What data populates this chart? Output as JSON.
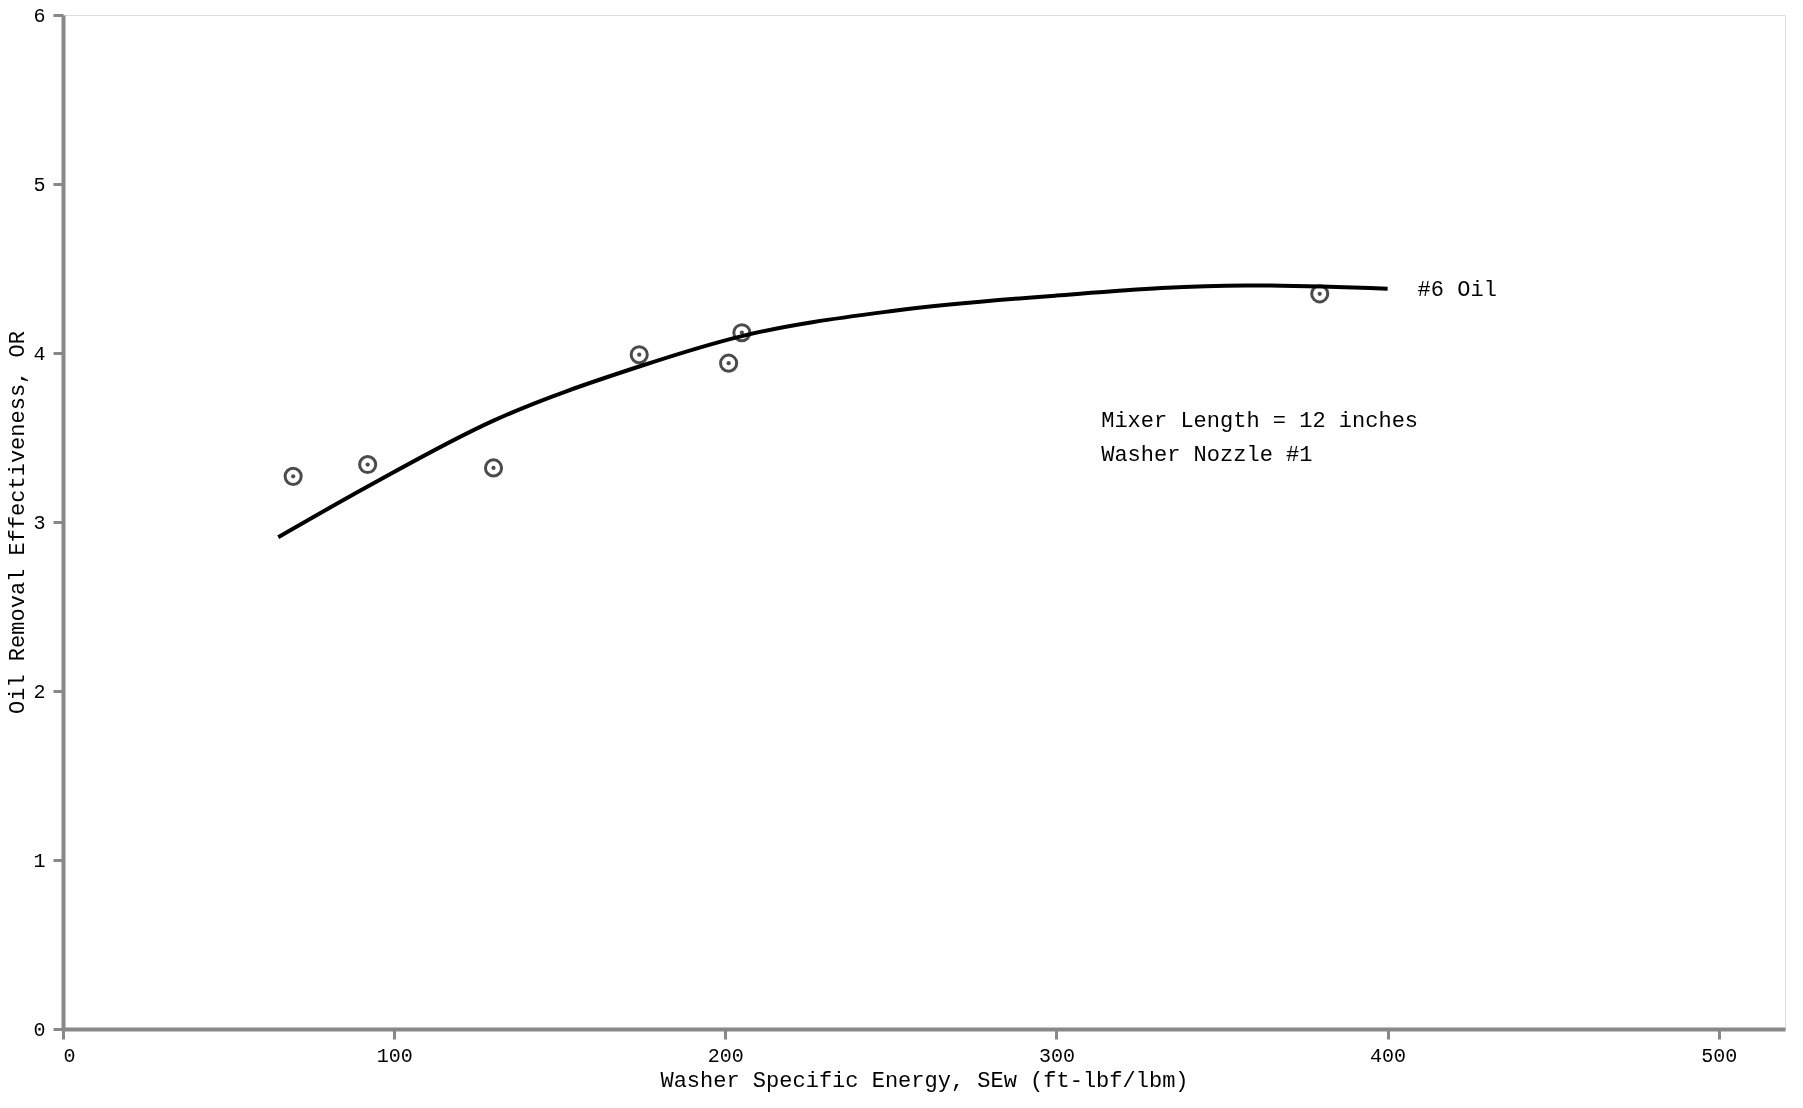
{
  "chart_data": {
    "type": "scatter",
    "xlabel": "Washer Specific Energy, SEw (ft-lbf/lbm)",
    "ylabel": "Oil Removal Effectiveness, OR",
    "xlim": [
      0,
      520
    ],
    "ylim": [
      0,
      6
    ],
    "xticks": [
      0,
      100,
      200,
      300,
      400,
      500
    ],
    "yticks": [
      0,
      1,
      2,
      3,
      4,
      5,
      6
    ],
    "grid": false,
    "legend": false,
    "series": [
      {
        "marker": "circle",
        "color": "#000000",
        "x": [
          69.5,
          92,
          130,
          174,
          201,
          205,
          379.5
        ],
        "values": [
          3.27,
          3.34,
          3.32,
          3.99,
          3.94,
          4.12,
          4.35
        ]
      },
      {
        "type": "line",
        "name": "#6 Oil",
        "line_style": "solid",
        "color": "#000000",
        "x": [
          65,
          92,
          130,
          174,
          205,
          251,
          300,
          357,
          400
        ],
        "values": [
          2.91,
          3.21,
          3.6,
          3.92,
          4.1,
          4.25,
          4.34,
          4.4,
          4.38
        ]
      }
    ],
    "annotations": [
      "Mixer Length = 12 inches",
      "Washer Nozzle #1"
    ]
  }
}
